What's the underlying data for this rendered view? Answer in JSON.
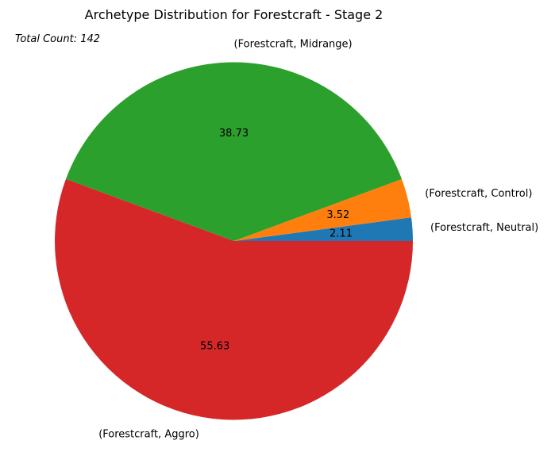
{
  "chart_data": {
    "type": "pie",
    "title": "Archetype Distribution for Forestcraft - Stage 2",
    "annotation": "Total Count: 142",
    "slices": [
      {
        "label": "(Forestcraft, Neutral)",
        "value": 2.11,
        "value_label": "2.11",
        "color": "#1f77b4"
      },
      {
        "label": "(Forestcraft, Control)",
        "value": 3.52,
        "value_label": "3.52",
        "color": "#ff7f0e"
      },
      {
        "label": "(Forestcraft, Midrange)",
        "value": 38.73,
        "value_label": "38.73",
        "color": "#2ca02c"
      },
      {
        "label": "(Forestcraft, Aggro)",
        "value": 55.63,
        "value_label": "55.63",
        "color": "#d62728"
      }
    ]
  }
}
